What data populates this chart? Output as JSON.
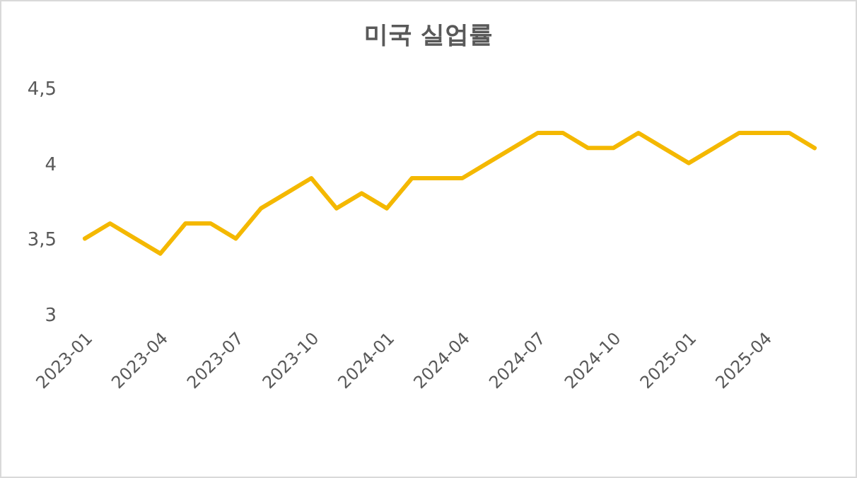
{
  "chart_data": {
    "type": "line",
    "title": "미국 실업률",
    "categories": [
      "2023-01",
      null,
      null,
      "2023-04",
      null,
      null,
      "2023-07",
      null,
      null,
      "2023-10",
      null,
      null,
      "2024-01",
      null,
      null,
      "2024-04",
      null,
      null,
      "2024-07",
      null,
      null,
      "2024-10",
      null,
      null,
      "2025-01",
      null,
      null,
      "2025-04",
      null,
      null
    ],
    "series": [
      {
        "color": "#f4b800",
        "values": [
          3.5,
          3.6,
          3.5,
          3.4,
          3.6,
          3.6,
          3.5,
          3.7,
          3.8,
          3.9,
          3.7,
          3.8,
          3.7,
          3.9,
          3.9,
          3.9,
          4.0,
          4.1,
          4.2,
          4.2,
          4.1,
          4.1,
          4.2,
          4.1,
          4.0,
          4.1,
          4.2,
          4.2,
          4.2,
          4.1
        ]
      }
    ],
    "ylim": [
      3,
      4.5
    ],
    "yticks": [
      3,
      {
        "value": 3.5,
        "label": "3,5"
      },
      4,
      {
        "value": 4.5,
        "label": "4,5"
      }
    ],
    "grid": false,
    "marker": "none",
    "line_style": "solid"
  }
}
